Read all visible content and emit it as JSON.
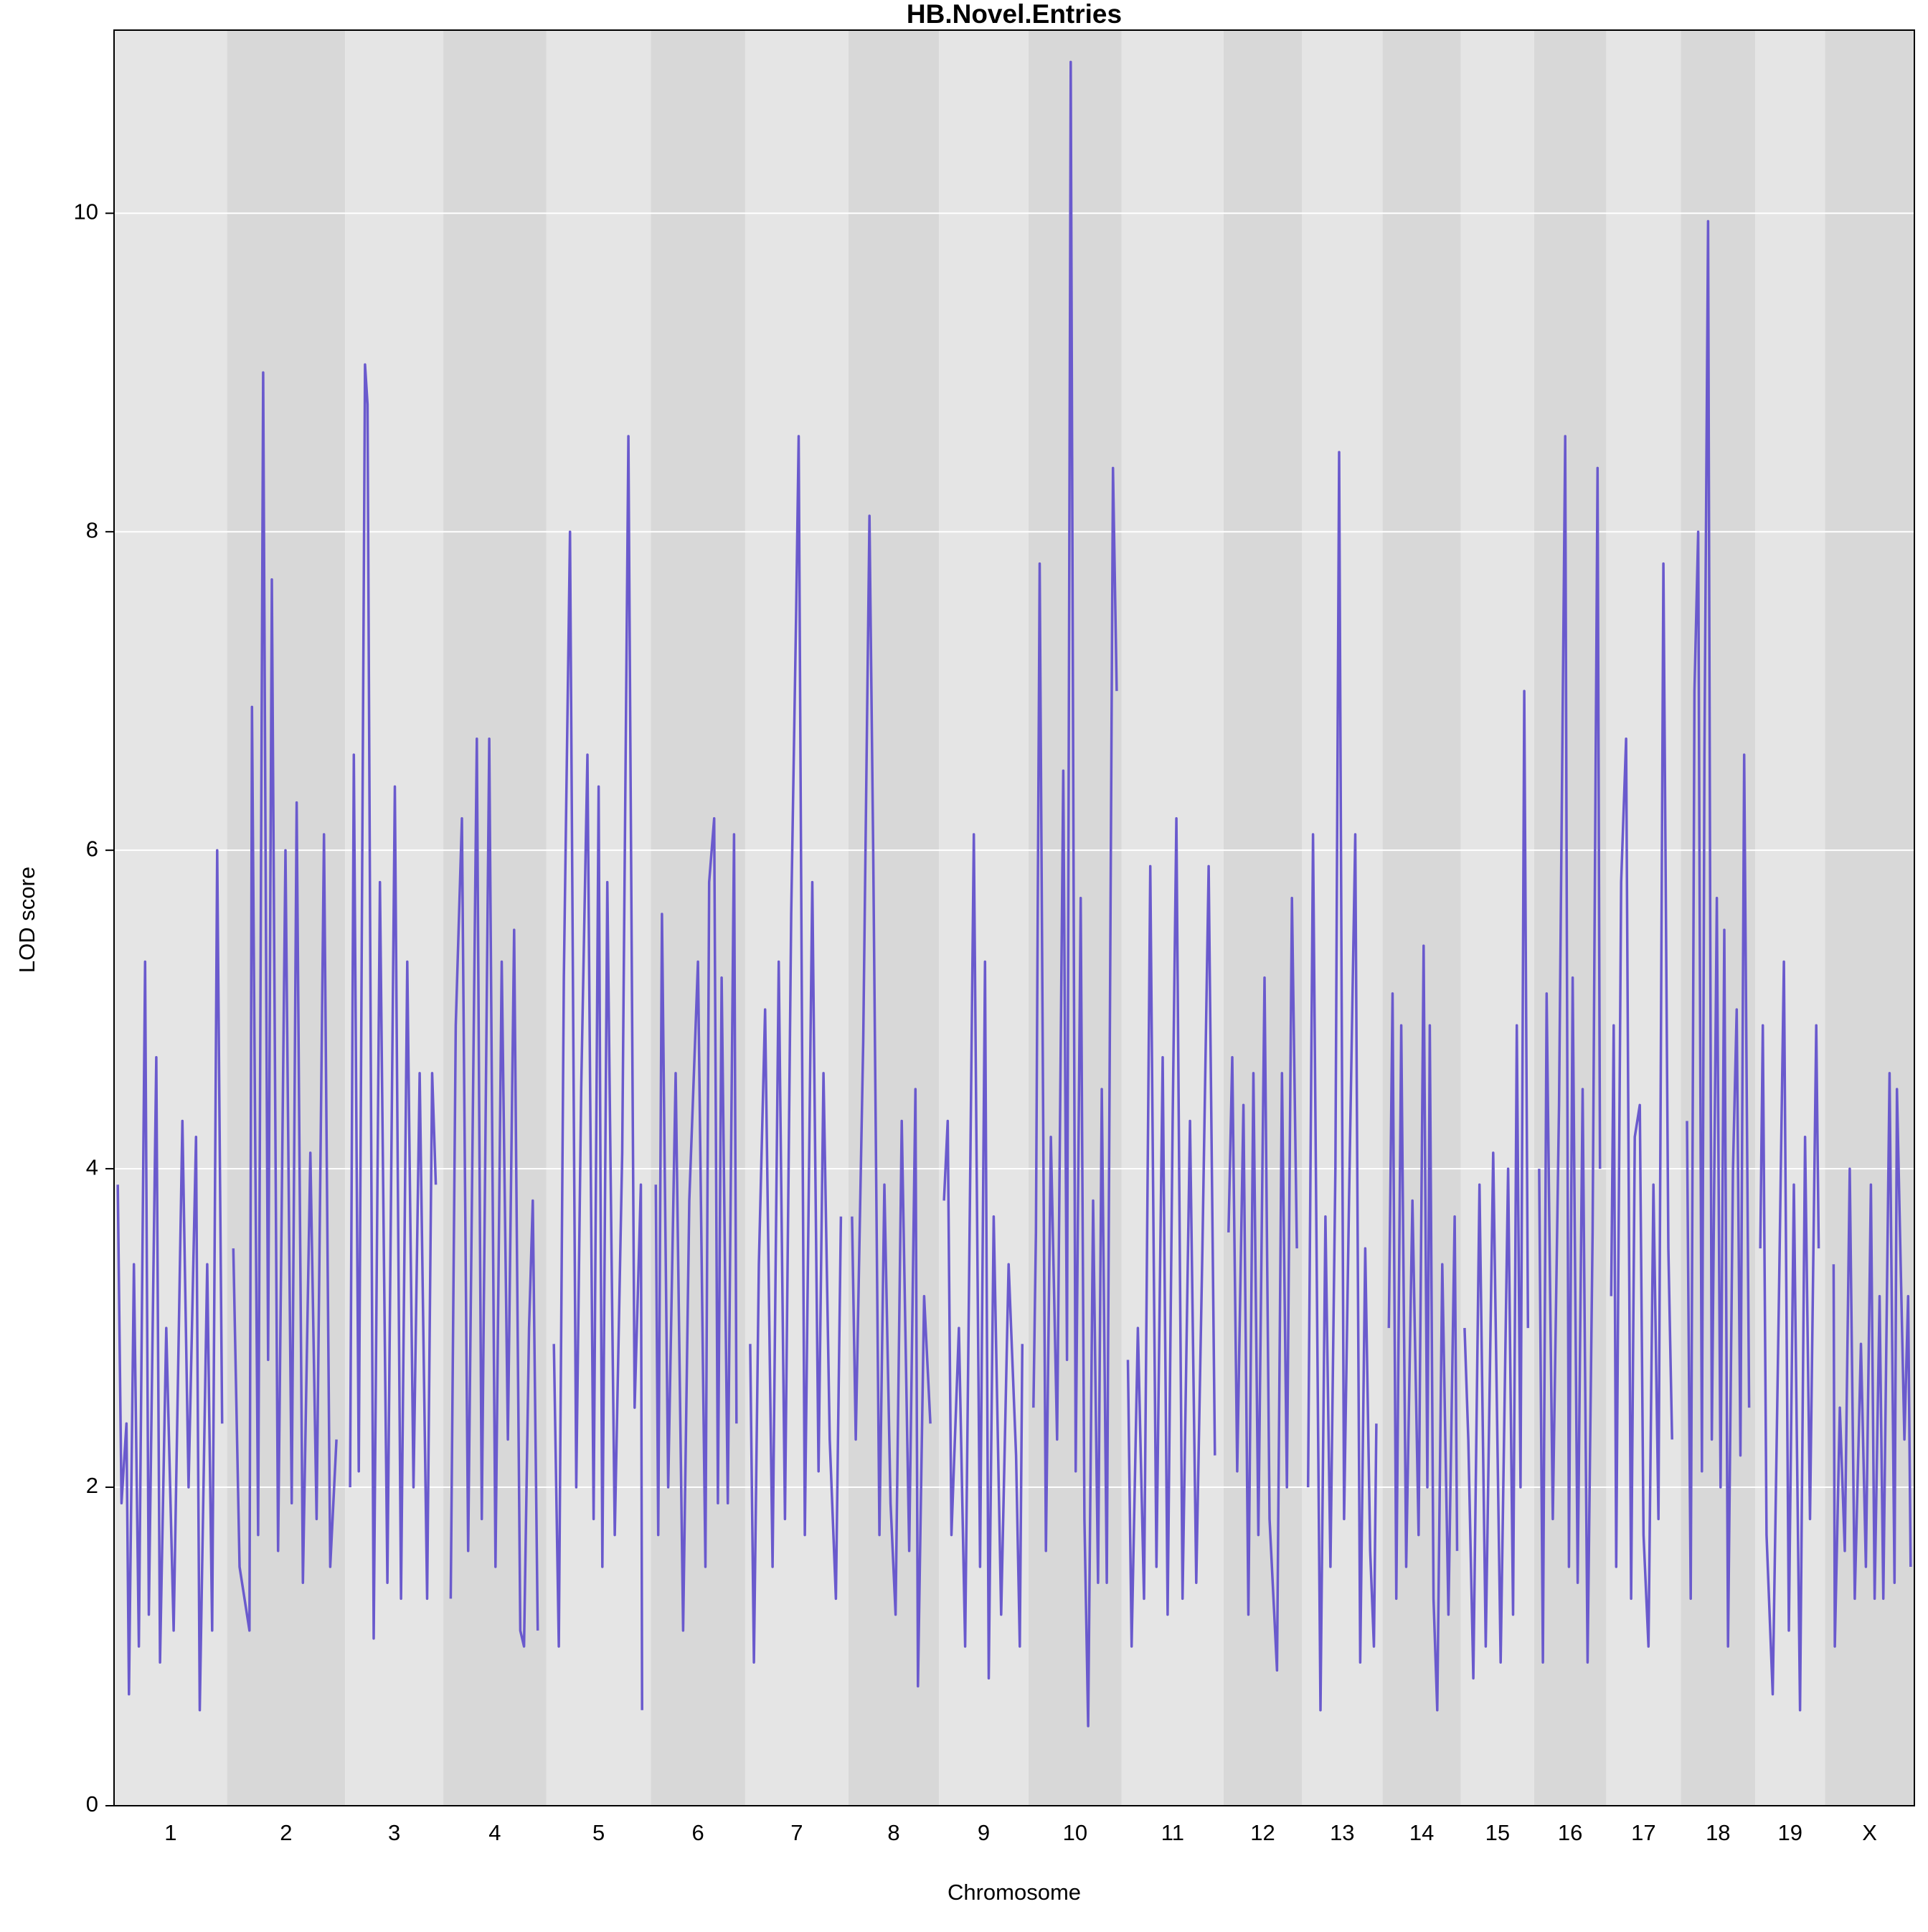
{
  "chart_data": {
    "type": "line",
    "title": "HB.Novel.Entries",
    "xlabel": "Chromosome",
    "ylabel": "LOD score",
    "color": "#6a5acd",
    "band_colors": [
      "#e5e5e5",
      "#d8d8d8"
    ],
    "grid_color": "#ffffff",
    "grid": true,
    "xlim": [
      0,
      1449
    ],
    "ylim": [
      0,
      11.15
    ],
    "yticks": [
      0,
      2,
      4,
      6,
      8,
      10
    ],
    "chromosomes": [
      {
        "label": "1",
        "start": 0,
        "end": 91,
        "x": [
          3,
          6,
          10,
          12,
          16,
          20,
          25,
          28,
          34,
          37,
          42,
          48,
          55,
          60,
          66,
          69,
          75,
          79,
          83,
          87
        ],
        "values": [
          3.9,
          1.9,
          2.4,
          0.7,
          3.4,
          1.0,
          5.3,
          1.2,
          4.7,
          0.9,
          3.0,
          1.1,
          4.3,
          2.0,
          4.2,
          0.6,
          3.4,
          1.1,
          6.0,
          2.4
        ]
      },
      {
        "label": "2",
        "start": 91,
        "end": 186,
        "x": [
          96,
          101,
          109,
          111,
          116,
          120,
          124,
          127,
          132,
          138,
          143,
          147,
          152,
          158,
          163,
          169,
          174,
          179
        ],
        "values": [
          3.5,
          1.5,
          1.1,
          6.9,
          1.7,
          9.0,
          2.8,
          7.7,
          1.6,
          6.0,
          1.9,
          6.3,
          1.4,
          4.1,
          1.8,
          6.1,
          1.5,
          2.3
        ]
      },
      {
        "label": "3",
        "start": 186,
        "end": 265,
        "x": [
          190,
          193,
          197,
          202,
          204,
          209,
          214,
          220,
          226,
          231,
          236,
          241,
          246,
          252,
          256,
          259
        ],
        "values": [
          2.0,
          6.6,
          2.1,
          9.05,
          8.8,
          1.05,
          5.8,
          1.4,
          6.4,
          1.3,
          5.3,
          2.0,
          4.6,
          1.3,
          4.6,
          3.9
        ]
      },
      {
        "label": "4",
        "start": 265,
        "end": 348,
        "x": [
          271,
          275,
          280,
          285,
          292,
          296,
          302,
          307,
          312,
          317,
          322,
          327,
          330,
          334,
          337,
          341
        ],
        "values": [
          1.3,
          4.9,
          6.2,
          1.6,
          6.7,
          1.8,
          6.7,
          1.5,
          5.3,
          2.3,
          5.5,
          1.1,
          1.0,
          3.0,
          3.8,
          1.1
        ]
      },
      {
        "label": "5",
        "start": 348,
        "end": 432,
        "x": [
          354,
          358,
          362,
          367,
          372,
          376,
          381,
          386,
          390,
          393,
          397,
          403,
          409,
          414,
          419,
          424,
          425
        ],
        "values": [
          2.9,
          1.0,
          5.2,
          8.0,
          2.0,
          4.5,
          6.6,
          1.8,
          6.4,
          1.5,
          5.8,
          1.7,
          4.1,
          8.6,
          2.5,
          3.9,
          0.6
        ]
      },
      {
        "label": "6",
        "start": 432,
        "end": 508,
        "x": [
          436,
          438,
          441,
          446,
          452,
          458,
          463,
          470,
          476,
          479,
          483,
          486,
          489,
          494,
          499,
          501
        ],
        "values": [
          3.9,
          1.7,
          5.6,
          2.0,
          4.6,
          1.1,
          3.8,
          5.3,
          1.5,
          5.8,
          6.2,
          1.9,
          5.2,
          1.9,
          6.1,
          2.4
        ]
      },
      {
        "label": "7",
        "start": 508,
        "end": 591,
        "x": [
          512,
          515,
          519,
          524,
          530,
          535,
          540,
          545,
          549,
          551,
          556,
          562,
          567,
          571,
          576,
          581,
          585
        ],
        "values": [
          2.9,
          0.9,
          3.4,
          5.0,
          1.5,
          5.3,
          1.8,
          5.6,
          7.5,
          8.6,
          1.7,
          5.8,
          2.1,
          4.6,
          2.3,
          1.3,
          3.7
        ]
      },
      {
        "label": "8",
        "start": 591,
        "end": 664,
        "x": [
          594,
          597,
          603,
          608,
          611,
          616,
          620,
          625,
          629,
          634,
          640,
          645,
          647,
          652,
          657
        ],
        "values": [
          3.7,
          2.3,
          4.8,
          8.1,
          6.0,
          1.7,
          3.9,
          1.9,
          1.2,
          4.3,
          1.6,
          4.5,
          0.75,
          3.2,
          2.4
        ]
      },
      {
        "label": "9",
        "start": 664,
        "end": 736,
        "x": [
          668,
          671,
          674,
          680,
          685,
          689,
          692,
          697,
          701,
          704,
          708,
          714,
          720,
          726,
          729,
          731
        ],
        "values": [
          3.8,
          4.3,
          1.7,
          3.0,
          1.0,
          3.9,
          6.1,
          1.5,
          5.3,
          0.8,
          3.7,
          1.2,
          3.4,
          2.2,
          1.0,
          2.9
        ]
      },
      {
        "label": "10",
        "start": 736,
        "end": 811,
        "x": [
          740,
          742,
          745,
          750,
          754,
          759,
          764,
          767,
          770,
          774,
          778,
          781,
          784,
          788,
          792,
          795,
          799,
          804,
          807
        ],
        "values": [
          2.5,
          3.6,
          7.8,
          1.6,
          4.2,
          2.3,
          6.5,
          2.8,
          10.95,
          2.1,
          5.7,
          1.8,
          0.5,
          3.8,
          1.4,
          4.5,
          1.4,
          8.4,
          7.0
        ]
      },
      {
        "label": "11",
        "start": 811,
        "end": 893,
        "x": [
          816,
          819,
          824,
          829,
          834,
          839,
          844,
          848,
          852,
          855,
          860,
          866,
          871,
          876,
          881,
          886
        ],
        "values": [
          2.8,
          1.0,
          3.0,
          1.3,
          5.9,
          1.5,
          4.7,
          1.2,
          4.3,
          6.2,
          1.3,
          4.3,
          1.4,
          3.5,
          5.9,
          2.2
        ]
      },
      {
        "label": "12",
        "start": 893,
        "end": 956,
        "x": [
          897,
          900,
          904,
          909,
          913,
          917,
          921,
          926,
          930,
          936,
          940,
          944,
          948,
          952
        ],
        "values": [
          3.6,
          4.7,
          2.1,
          4.4,
          1.2,
          4.6,
          1.7,
          5.2,
          1.8,
          0.85,
          4.6,
          2.0,
          5.7,
          3.5
        ]
      },
      {
        "label": "13",
        "start": 956,
        "end": 1021,
        "x": [
          961,
          965,
          971,
          975,
          979,
          983,
          986,
          990,
          994,
          999,
          1003,
          1007,
          1011,
          1014,
          1016
        ],
        "values": [
          2.0,
          6.1,
          0.6,
          3.7,
          1.5,
          4.0,
          8.5,
          1.8,
          3.8,
          6.1,
          0.9,
          3.5,
          1.6,
          1.0,
          2.4
        ]
      },
      {
        "label": "14",
        "start": 1021,
        "end": 1084,
        "x": [
          1026,
          1029,
          1032,
          1036,
          1040,
          1045,
          1050,
          1054,
          1057,
          1059,
          1062,
          1065,
          1069,
          1074,
          1079,
          1081
        ],
        "values": [
          3.0,
          5.1,
          1.3,
          4.9,
          1.5,
          3.8,
          1.7,
          5.4,
          2.0,
          4.9,
          1.3,
          0.6,
          3.4,
          1.2,
          3.7,
          1.6
        ]
      },
      {
        "label": "15",
        "start": 1084,
        "end": 1143,
        "x": [
          1087,
          1090,
          1094,
          1099,
          1104,
          1110,
          1116,
          1122,
          1126,
          1129,
          1132,
          1135,
          1138
        ],
        "values": [
          3.0,
          2.3,
          0.8,
          3.9,
          1.0,
          4.1,
          0.9,
          4.0,
          1.2,
          4.9,
          2.0,
          7.0,
          3.0
        ]
      },
      {
        "label": "16",
        "start": 1143,
        "end": 1201,
        "x": [
          1147,
          1150,
          1153,
          1158,
          1163,
          1168,
          1171,
          1174,
          1178,
          1182,
          1186,
          1190,
          1194,
          1196
        ],
        "values": [
          4.0,
          0.9,
          5.1,
          1.8,
          4.4,
          8.6,
          1.5,
          5.2,
          1.4,
          4.5,
          0.9,
          3.6,
          8.4,
          4.0
        ]
      },
      {
        "label": "17",
        "start": 1201,
        "end": 1261,
        "x": [
          1205,
          1207,
          1209,
          1213,
          1217,
          1221,
          1224,
          1228,
          1231,
          1235,
          1239,
          1243,
          1247,
          1251,
          1254
        ],
        "values": [
          3.2,
          4.9,
          1.5,
          5.8,
          6.7,
          1.3,
          4.2,
          4.4,
          1.7,
          1.0,
          3.9,
          1.8,
          7.8,
          3.5,
          2.3
        ]
      },
      {
        "label": "18",
        "start": 1261,
        "end": 1321,
        "x": [
          1266,
          1269,
          1272,
          1275,
          1278,
          1280,
          1283,
          1286,
          1290,
          1293,
          1296,
          1299,
          1303,
          1306,
          1309,
          1312,
          1316
        ],
        "values": [
          4.3,
          1.3,
          7.0,
          8.0,
          2.1,
          6.6,
          9.95,
          2.3,
          5.7,
          2.0,
          5.5,
          1.0,
          4.0,
          5.0,
          2.2,
          6.6,
          2.5
        ]
      },
      {
        "label": "19",
        "start": 1321,
        "end": 1377,
        "x": [
          1325,
          1327,
          1330,
          1335,
          1340,
          1344,
          1348,
          1352,
          1357,
          1361,
          1365,
          1370,
          1372
        ],
        "values": [
          3.5,
          4.9,
          1.7,
          0.7,
          3.2,
          5.3,
          1.1,
          3.9,
          0.6,
          4.2,
          1.8,
          4.9,
          3.5
        ]
      },
      {
        "label": "X",
        "start": 1377,
        "end": 1449,
        "x": [
          1384,
          1385,
          1389,
          1393,
          1397,
          1401,
          1406,
          1410,
          1414,
          1417,
          1421,
          1424,
          1429,
          1433,
          1435,
          1441,
          1444,
          1446
        ],
        "values": [
          3.4,
          1.0,
          2.5,
          1.6,
          4.0,
          1.3,
          2.9,
          1.5,
          3.9,
          1.3,
          3.2,
          1.3,
          4.6,
          1.4,
          4.5,
          2.3,
          3.2,
          1.5
        ]
      }
    ]
  }
}
